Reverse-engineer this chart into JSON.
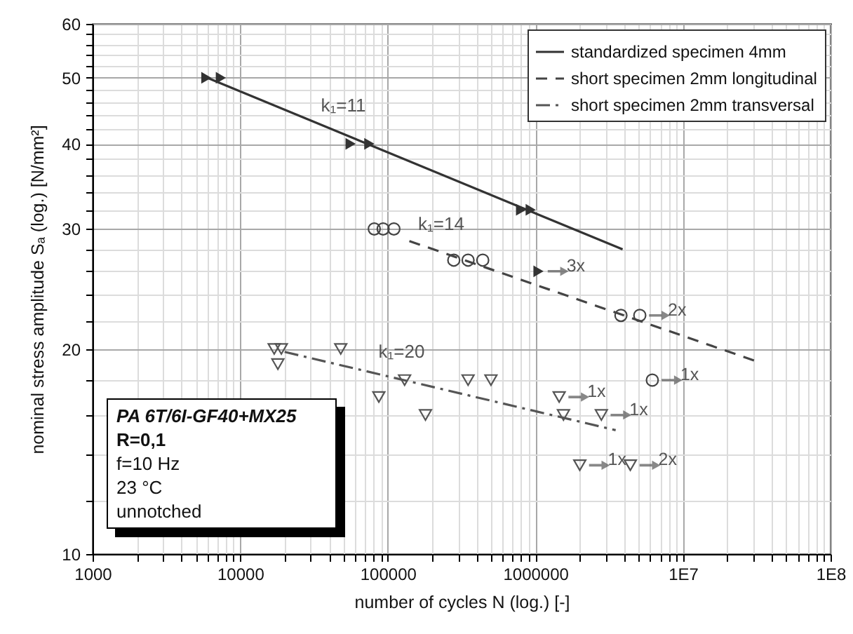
{
  "chart_data": {
    "type": "scatter",
    "xlabel": "number of cycles N (log.) [-]",
    "ylabel": "nominal stress amplitude  Sₐ (log.) [N/mm²]",
    "log": "xy",
    "grid": true,
    "legend": "top right",
    "xlim": [
      1000,
      100000000
    ],
    "xticks": [
      1000,
      {
        "value": 2000,
        "label": null
      },
      {
        "value": 3000,
        "label": null
      },
      {
        "value": 4000,
        "label": null
      },
      {
        "value": 5000,
        "label": null
      },
      {
        "value": 6000,
        "label": null
      },
      {
        "value": 7000,
        "label": null
      },
      {
        "value": 8000,
        "label": null
      },
      {
        "value": 9000,
        "label": null
      },
      10000,
      {
        "value": 20000,
        "label": null
      },
      {
        "value": 30000,
        "label": null
      },
      {
        "value": 40000,
        "label": null
      },
      {
        "value": 50000,
        "label": null
      },
      {
        "value": 60000,
        "label": null
      },
      {
        "value": 70000,
        "label": null
      },
      {
        "value": 80000,
        "label": null
      },
      {
        "value": 90000,
        "label": null
      },
      100000,
      {
        "value": 200000,
        "label": null
      },
      {
        "value": 300000,
        "label": null
      },
      {
        "value": 400000,
        "label": null
      },
      {
        "value": 500000,
        "label": null
      },
      {
        "value": 600000,
        "label": null
      },
      {
        "value": 700000,
        "label": null
      },
      {
        "value": 800000,
        "label": null
      },
      {
        "value": 900000,
        "label": null
      },
      1000000,
      {
        "value": 2000000,
        "label": null
      },
      {
        "value": 3000000,
        "label": null
      },
      {
        "value": 4000000,
        "label": null
      },
      {
        "value": 5000000,
        "label": null
      },
      {
        "value": 6000000,
        "label": null
      },
      {
        "value": 7000000,
        "label": null
      },
      {
        "value": 8000000,
        "label": null
      },
      {
        "value": 9000000,
        "label": null
      },
      {
        "value": 10000000,
        "label": "1E7"
      },
      {
        "value": 20000000,
        "label": null
      },
      {
        "value": 30000000,
        "label": null
      },
      {
        "value": 40000000,
        "label": null
      },
      {
        "value": 50000000,
        "label": null
      },
      {
        "value": 60000000,
        "label": null
      },
      {
        "value": 70000000,
        "label": null
      },
      {
        "value": 80000000,
        "label": null
      },
      {
        "value": 90000000,
        "label": null
      },
      {
        "value": 100000000,
        "label": "1E8"
      }
    ],
    "ylim": [
      10,
      60
    ],
    "yticks": [
      10,
      {
        "value": 12,
        "label": null
      },
      {
        "value": 14,
        "label": null
      },
      {
        "value": 16,
        "label": null
      },
      {
        "value": 18,
        "label": null
      },
      20,
      {
        "value": 22,
        "label": null
      },
      {
        "value": 24,
        "label": null
      },
      {
        "value": 26,
        "label": null
      },
      {
        "value": 28,
        "label": null
      },
      30,
      {
        "value": 32,
        "label": null
      },
      {
        "value": 34,
        "label": null
      },
      {
        "value": 36,
        "label": null
      },
      {
        "value": 38,
        "label": null
      },
      40,
      {
        "value": 42,
        "label": null
      },
      {
        "value": 44,
        "label": null
      },
      {
        "value": 46,
        "label": null
      },
      {
        "value": 48,
        "label": null
      },
      50,
      {
        "value": 52,
        "label": null
      },
      {
        "value": 54,
        "label": null
      },
      {
        "value": 56,
        "label": null
      },
      {
        "value": 58,
        "label": null
      },
      60
    ],
    "series": [
      {
        "type": "scatter",
        "color": "#333333",
        "marker": "triangle",
        "x": [
          5900,
          7400,
          56000,
          75000,
          800000,
          930000,
          1050000
        ],
        "values": [
          50,
          50,
          40,
          40,
          32,
          32,
          26
        ]
      },
      {
        "type": "line",
        "name": "standardized specimen 4mm",
        "color": "#333333",
        "line_style": "solid",
        "x": [
          6000,
          3900000
        ],
        "values": [
          50,
          28
        ]
      },
      {
        "type": "scatter",
        "color": "#444444",
        "marker": "circle",
        "x": [
          81000,
          93000,
          110000,
          280000,
          350000,
          440000,
          3800000,
          5100000,
          6200000
        ],
        "values": [
          30,
          30,
          30,
          27,
          27,
          27,
          22.4,
          22.4,
          18
        ]
      },
      {
        "type": "line",
        "name": "short specimen 2mm longitudinal",
        "color": "#444444",
        "line_style": "dashed",
        "x": [
          140000,
          31000000
        ],
        "values": [
          28.8,
          19.2
        ]
      },
      {
        "type": "scatter",
        "color": "#555555",
        "marker": "triangle-down",
        "x": [
          17000,
          19000,
          18000,
          48000,
          87000,
          130000,
          180000,
          350000,
          500000,
          1450000,
          1550000,
          2800000,
          2000000,
          4400000
        ],
        "values": [
          20,
          20,
          19,
          20,
          17,
          18,
          16,
          18,
          18,
          17,
          16,
          16,
          13.5,
          13.5
        ]
      },
      {
        "type": "line",
        "name": "short specimen 2mm transversal",
        "color": "#555555",
        "line_style": "dashdot",
        "x": [
          20000,
          3500000
        ],
        "values": [
          19.8,
          15.2
        ]
      }
    ],
    "annotations": [
      {
        "text": "k₁=11",
        "x": 50000,
        "y": 41.4
      },
      {
        "text": "k₁=14",
        "x": 230000,
        "y": 27.7
      },
      {
        "text": "k₁=20",
        "x": 124000,
        "y": 18
      },
      {
        "text": "3x",
        "x": 1050000,
        "y": 26
      },
      {
        "text": "2x",
        "x": 5100000,
        "y": 22.4
      },
      {
        "text": "1x",
        "x": 6200000,
        "y": 18
      },
      {
        "text": "1x",
        "x": 1450000,
        "y": 17
      },
      {
        "text": "1x",
        "x": 2800000,
        "y": 16
      },
      {
        "text": "1x",
        "x": 2000000,
        "y": 13.5
      },
      {
        "text": "2x",
        "x": 4400000,
        "y": 13.5
      },
      "PA 6T/6I-GF40+MX25",
      "R=0,1",
      "f=10 Hz",
      "23 °C",
      "unnotched"
    ]
  }
}
